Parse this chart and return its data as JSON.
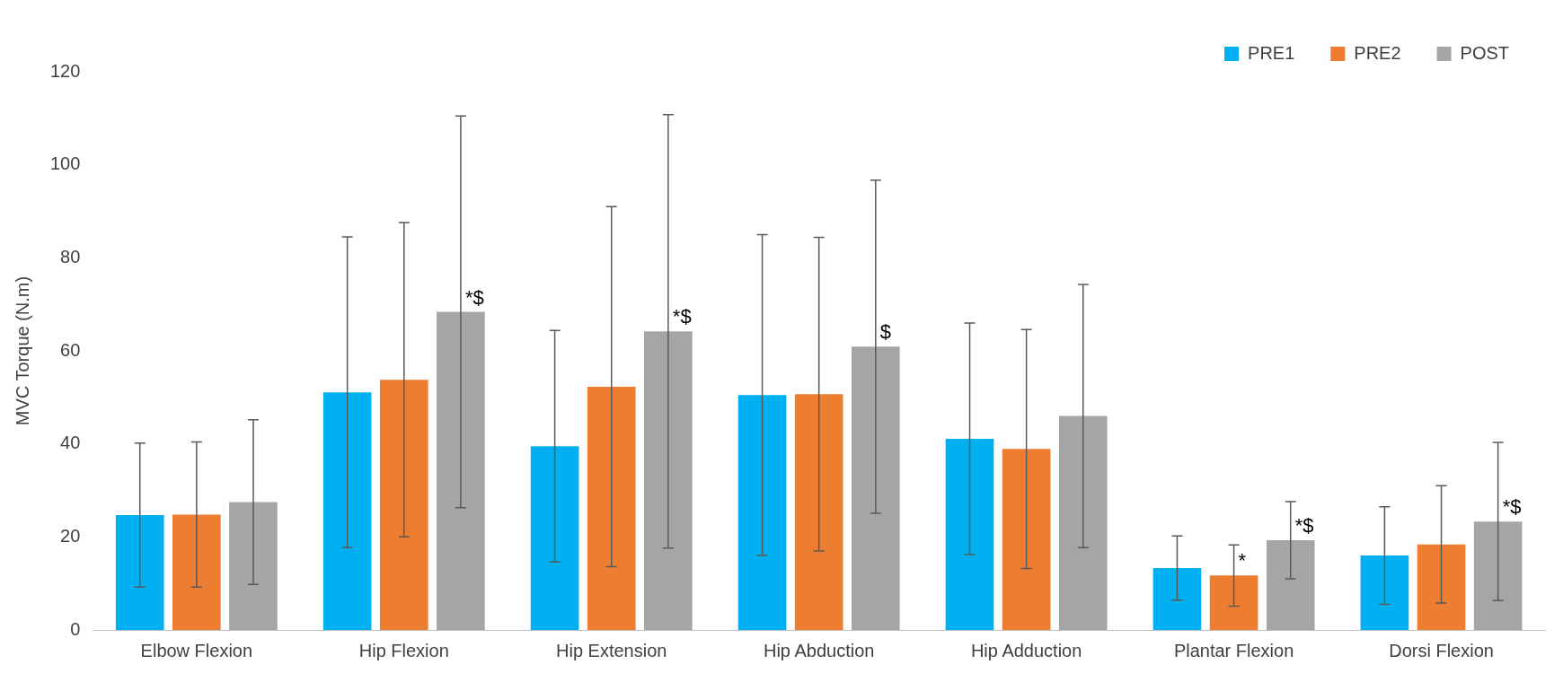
{
  "chart_data": {
    "type": "bar",
    "ylabel": "MVC Torque (N.m)",
    "categories": [
      "Elbow Flexion",
      "Hip Flexion",
      "Hip Extension",
      "Hip Abduction",
      "Hip Adduction",
      "Plantar Flexion",
      "Dorsi Flexion"
    ],
    "series": [
      {
        "name": "PRE1",
        "color": "#00b0f0",
        "values": [
          24.7,
          51.1,
          39.5,
          50.5,
          41.1,
          13.3,
          16.0
        ],
        "errors": [
          15.5,
          33.4,
          24.9,
          34.5,
          24.9,
          6.9,
          10.5
        ]
      },
      {
        "name": "PRE2",
        "color": "#ed7d31",
        "values": [
          24.8,
          53.8,
          52.3,
          50.7,
          38.9,
          11.7,
          18.4
        ],
        "errors": [
          15.6,
          33.8,
          38.7,
          33.7,
          25.7,
          6.6,
          12.6
        ],
        "value_labels": [
          null,
          null,
          null,
          null,
          null,
          "*",
          null
        ]
      },
      {
        "name": "POST",
        "color": "#a5a5a5",
        "values": [
          27.5,
          68.4,
          64.2,
          60.9,
          46.0,
          19.3,
          23.3
        ],
        "errors": [
          17.7,
          42.1,
          46.6,
          35.8,
          28.3,
          8.3,
          17.0
        ],
        "value_labels": [
          null,
          "*$",
          "*$",
          "$",
          null,
          "*$",
          "*$"
        ]
      }
    ],
    "ylim": [
      0,
      120
    ],
    "yticks": [
      0,
      20,
      40,
      60,
      80,
      100,
      120
    ],
    "grid": false,
    "legend": "top right"
  }
}
